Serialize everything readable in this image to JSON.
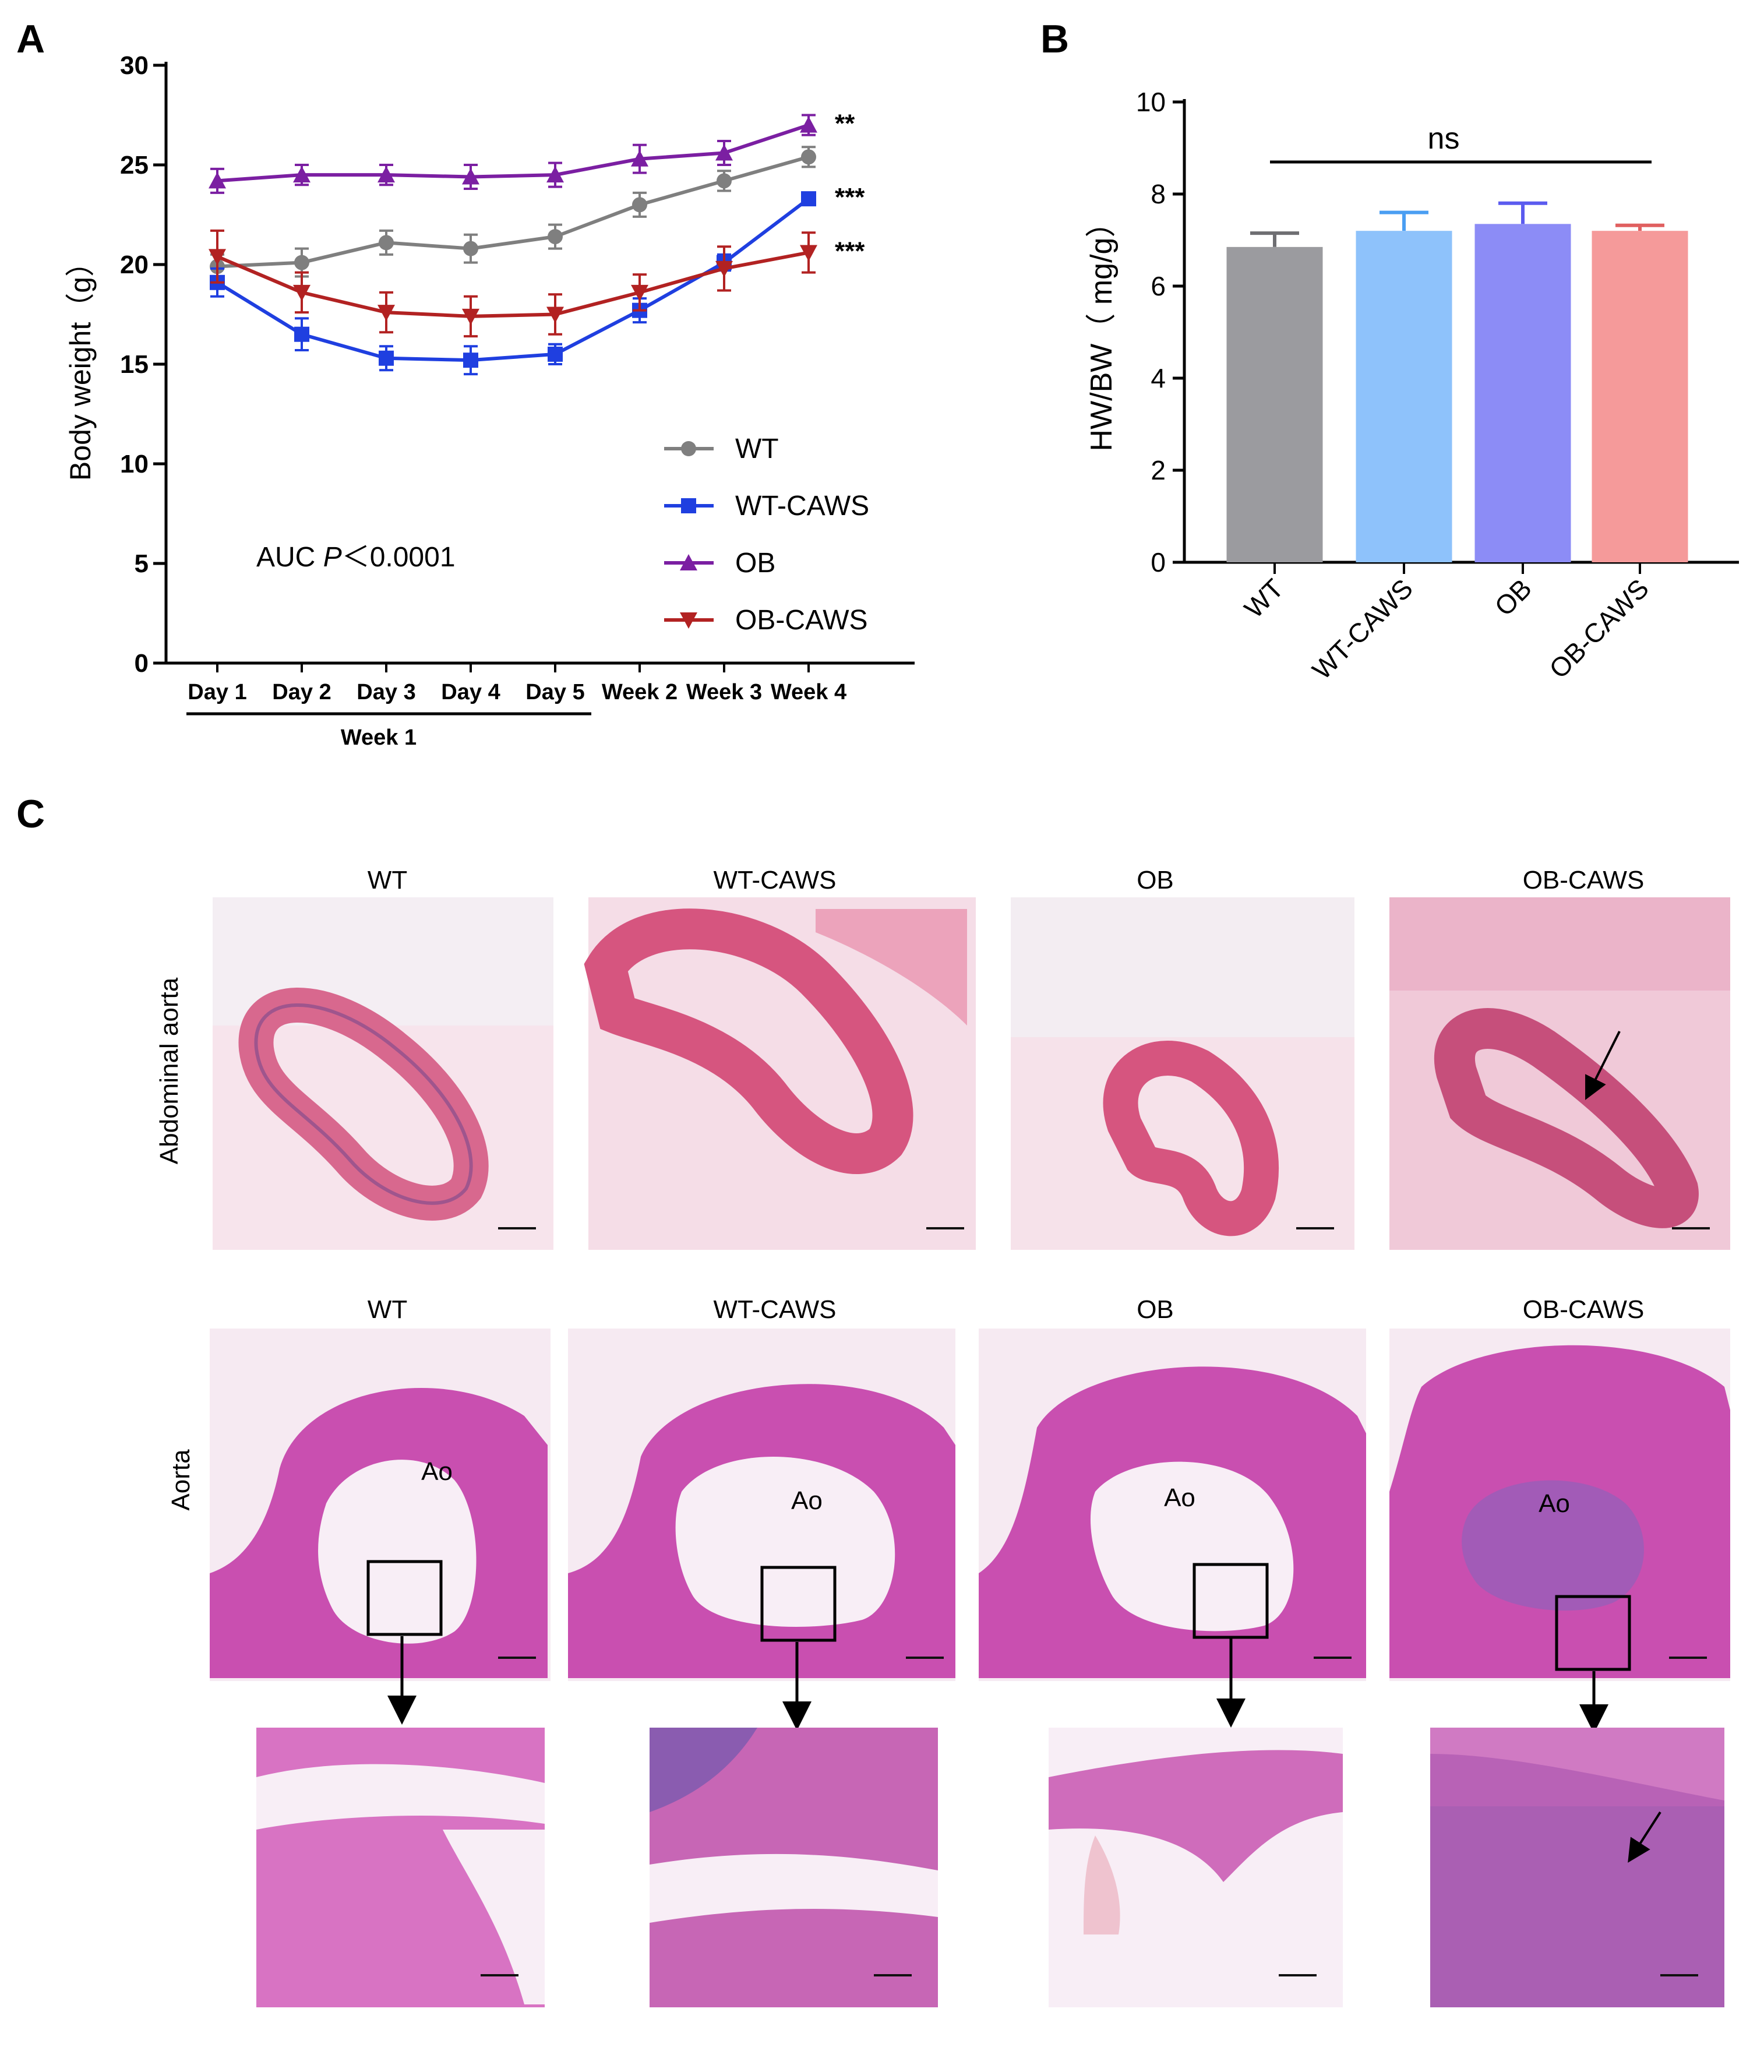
{
  "panel_a": {
    "letter": "A",
    "chart_data": {
      "type": "line",
      "categories": [
        "Day 1",
        "Day 2",
        "Day 3",
        "Day 4",
        "Day 5",
        "Week 2",
        "Week 3",
        "Week 4"
      ],
      "group_label": "Week 1",
      "ylabel": "Body weight（g）",
      "ylim": [
        0,
        30
      ],
      "yticks": [
        0,
        5,
        10,
        15,
        20,
        25,
        30
      ],
      "ytick_labels": [
        "0",
        "5",
        "10",
        "15",
        "20",
        "25",
        "30"
      ],
      "annotation": {
        "prefix": "AUC ",
        "p": "P",
        "suffix": "＜0.0001"
      },
      "series": [
        {
          "name": "WT",
          "color": "#7f7f7f",
          "marker": "circle",
          "values": [
            19.9,
            20.1,
            21.1,
            20.8,
            21.4,
            23.0,
            24.2,
            25.4
          ],
          "errors": [
            0.6,
            0.7,
            0.6,
            0.7,
            0.6,
            0.6,
            0.5,
            0.5
          ],
          "significance": ""
        },
        {
          "name": "WT-CAWS",
          "color": "#1f3fe0",
          "marker": "square",
          "values": [
            19.1,
            16.5,
            15.3,
            15.2,
            15.5,
            17.7,
            20.1,
            23.3
          ],
          "errors": [
            0.7,
            0.8,
            0.6,
            0.7,
            0.5,
            0.6,
            0.4,
            0.2
          ],
          "significance": "***"
        },
        {
          "name": "OB",
          "color": "#7b1fa2",
          "marker": "triangle",
          "values": [
            24.2,
            24.5,
            24.5,
            24.4,
            24.5,
            25.3,
            25.6,
            27.0
          ],
          "errors": [
            0.6,
            0.5,
            0.5,
            0.6,
            0.6,
            0.7,
            0.6,
            0.5
          ],
          "significance": "**"
        },
        {
          "name": "OB-CAWS",
          "color": "#b22222",
          "marker": "triangle-down",
          "values": [
            20.4,
            18.6,
            17.6,
            17.4,
            17.5,
            18.6,
            19.8,
            20.6
          ],
          "errors": [
            1.3,
            1.0,
            1.0,
            1.0,
            1.0,
            0.9,
            1.1,
            1.0
          ],
          "significance": "***"
        }
      ]
    }
  },
  "panel_b": {
    "letter": "B",
    "chart_data": {
      "type": "bar",
      "categories": [
        "WT",
        "WT-CAWS",
        "OB",
        "OB-CAWS"
      ],
      "values": [
        6.85,
        7.2,
        7.35,
        7.2
      ],
      "errors": [
        0.3,
        0.4,
        0.45,
        0.12
      ],
      "colors": [
        "#9b9b9f",
        "#8ec2fb",
        "#8c8cf6",
        "#f59a9a"
      ],
      "error_colors": [
        "#6e6e72",
        "#4a9ef2",
        "#5b5bef",
        "#e06060"
      ],
      "ylabel": "HW/BW（ mg/g）",
      "ylim": [
        0,
        10
      ],
      "yticks": [
        0,
        2,
        4,
        6,
        8,
        10
      ],
      "ytick_labels": [
        "0",
        "2",
        "4",
        "6",
        "8",
        "10"
      ],
      "significance": "ns"
    }
  },
  "panel_c": {
    "letter": "C",
    "abdominal": {
      "row_label": "Abdominal aorta",
      "titles": [
        "WT",
        "WT-CAWS",
        "OB",
        "OB-CAWS"
      ]
    },
    "aorta": {
      "row_label": "Aorta",
      "titles": [
        "WT",
        "WT-CAWS",
        "OB",
        "OB-CAWS"
      ],
      "vessel_label": "Ao"
    }
  }
}
